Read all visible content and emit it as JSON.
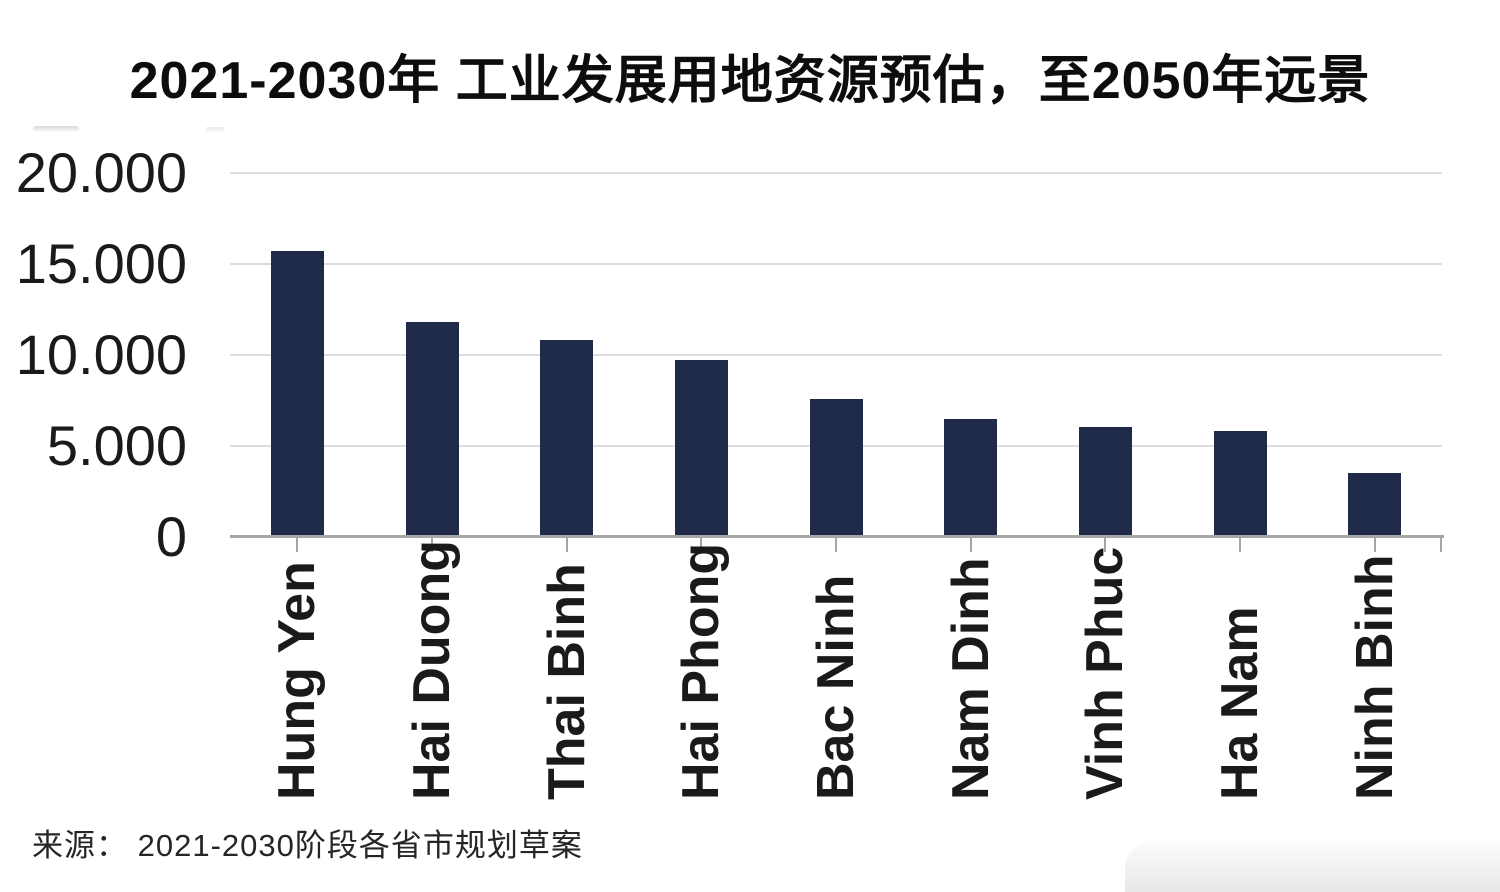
{
  "page": {
    "title": "2021-2030年 工业发展用地资源预估，至2050年远景",
    "source": "来源： 2021-2030阶段各省市规划草案"
  },
  "colors": {
    "bar": "#1e2a47",
    "gridline": "#dcdcdc",
    "axis": "#a6a6a6",
    "title_text": "#0d0d0d",
    "label_text": "#1a1a1a"
  },
  "chart_data": {
    "type": "bar",
    "title": "2021-2030年 工业发展用地资源预估，至2050年远景",
    "categories": [
      "Hung Yen",
      "Hai Duong",
      "Thai Binh",
      "Hai Phong",
      "Bac Ninh",
      "Nam Dinh",
      "Vinh Phuc",
      "Ha Nam",
      "Ninh Binh"
    ],
    "values": [
      15700,
      11800,
      10800,
      9700,
      7600,
      6500,
      6050,
      5800,
      3500
    ],
    "xlabel": "",
    "ylabel": "",
    "ylim": [
      0,
      20000
    ],
    "yticks": [
      20000,
      15000,
      10000,
      5000,
      0
    ],
    "ytick_labels": [
      "20.000",
      "15.000",
      "10.000",
      "5.000",
      "0"
    ],
    "grid": true,
    "legend": "none",
    "bar_color": "#1e2a47",
    "source": "来源： 2021-2030阶段各省市规划草案"
  }
}
